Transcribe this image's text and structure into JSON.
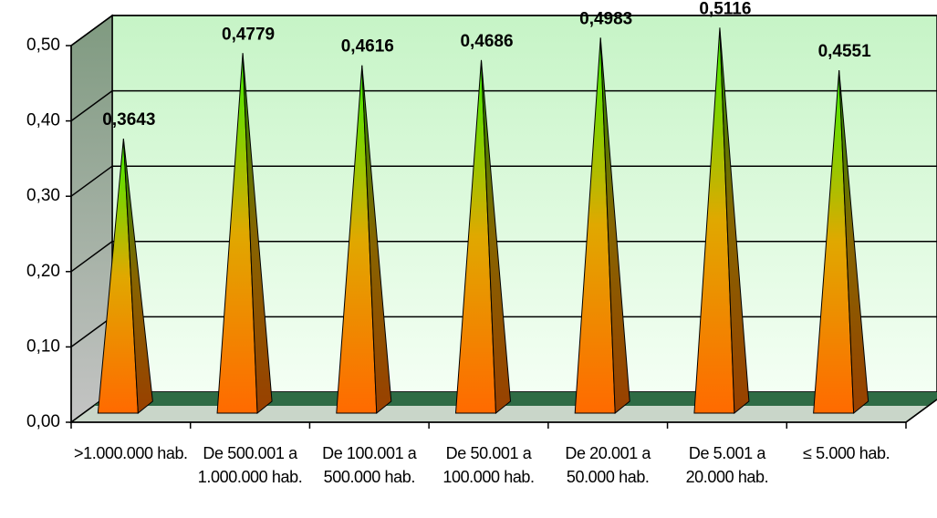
{
  "chart_data": {
    "type": "pyramid",
    "categories": [
      ">1.000.000 hab.",
      "De 500.001 a 1.000.000 hab.",
      "De 100.001 a 500.000 hab.",
      "De 50.001 a 100.000 hab.",
      "De 20.001 a 50.000 hab.",
      "De 5.001 a 20.000 hab.",
      "≤ 5.000 hab."
    ],
    "values": [
      0.3643,
      0.4779,
      0.4616,
      0.4686,
      0.4983,
      0.5116,
      0.4551
    ],
    "value_labels": [
      "0,3643",
      "0,4779",
      "0,4616",
      "0,4686",
      "0,4983",
      "0,5116",
      "0,4551"
    ],
    "colors": [
      "#3cf000",
      "#e0a800",
      "#ff6a00"
    ],
    "ylim": [
      0,
      0.5
    ],
    "yticks": [
      {
        "value": 0,
        "label": "0,00"
      },
      {
        "value": 0.1,
        "label": "0,10"
      },
      {
        "value": 0.2,
        "label": "0,20"
      },
      {
        "value": 0.3,
        "label": "0,30"
      },
      {
        "value": 0.4,
        "label": "0,40"
      },
      {
        "value": 0.5,
        "label": "0,50"
      }
    ],
    "grid": true
  }
}
